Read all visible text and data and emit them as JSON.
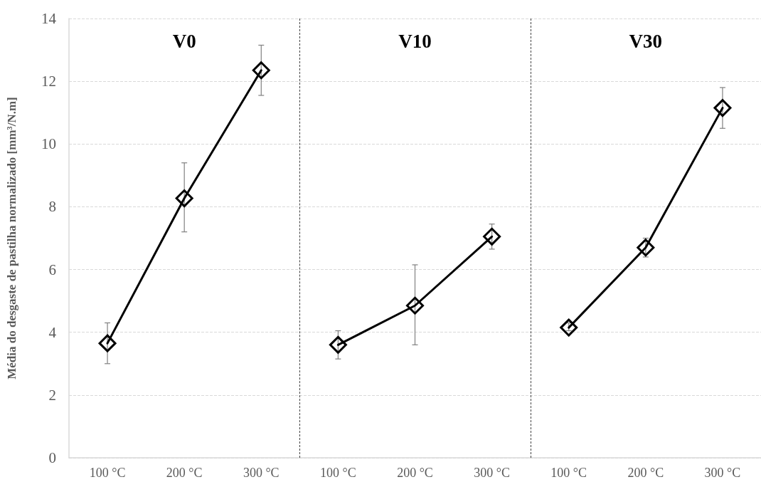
{
  "chart_data": {
    "type": "line",
    "categories": [
      "100 °C",
      "200 °C",
      "300 °C",
      "100 °C",
      "200 °C",
      "300 °C",
      "100 °C",
      "200 °C",
      "300 °C"
    ],
    "ylabel": "Média do desgaste de pastilha normalizado [mm³/N.m]",
    "annotations": [
      "V0",
      "V10",
      "V30"
    ],
    "series": [
      {
        "color": "#000000",
        "values": [
          3.65,
          8.27,
          12.35,
          null,
          null,
          null,
          null,
          null,
          null
        ],
        "errors": [
          [
            3.0,
            4.3
          ],
          [
            7.2,
            9.4
          ],
          [
            11.55,
            13.15
          ],
          null,
          null,
          null,
          null,
          null,
          null
        ]
      },
      {
        "color": "#000000",
        "values": [
          null,
          null,
          null,
          3.6,
          4.85,
          7.05,
          null,
          null,
          null
        ],
        "errors": [
          null,
          null,
          null,
          [
            3.15,
            4.05
          ],
          [
            3.6,
            6.15
          ],
          [
            6.65,
            7.45
          ],
          null,
          null,
          null
        ]
      },
      {
        "color": "#000000",
        "values": [
          null,
          null,
          null,
          null,
          null,
          null,
          4.15,
          6.7,
          11.15
        ],
        "errors": [
          null,
          null,
          null,
          null,
          null,
          null,
          [
            4.05,
            4.3
          ],
          [
            6.4,
            7.0
          ],
          [
            10.5,
            11.8
          ]
        ]
      }
    ],
    "ylim": [
      0,
      14
    ],
    "yticks": [
      0,
      2,
      4,
      6,
      8,
      10,
      12,
      14
    ],
    "grid": "y",
    "marker": "diamond",
    "line_style": "solid"
  }
}
